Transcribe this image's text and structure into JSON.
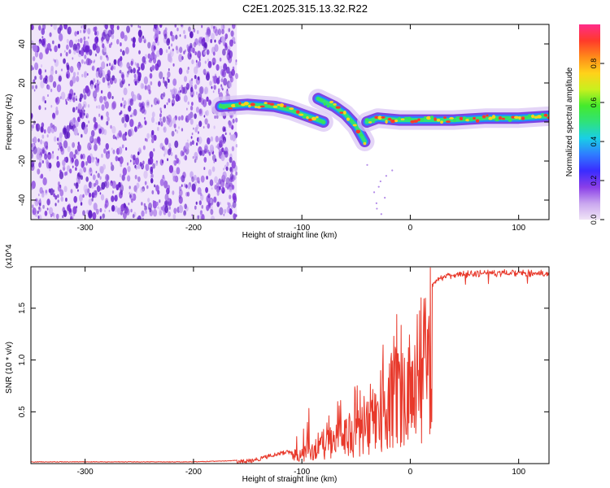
{
  "title": "C2E1.2025.315.13.32.R22",
  "colors": {
    "snr_line": "#e8392b",
    "speckle": "#7a2fd6",
    "colorbar_stops": [
      "#f0e4f6",
      "#c9a6ef",
      "#8a3ee8",
      "#3a2cff",
      "#2f7cff",
      "#19cfe6",
      "#2fe27a",
      "#45ea2c",
      "#c8f01e",
      "#ffd21a",
      "#ff8a1a",
      "#ff3a2a",
      "#ff2c8a"
    ]
  },
  "chart_data": [
    {
      "type": "heatmap",
      "title": "",
      "xlabel": "Height of straight line (km)",
      "ylabel": "Frequency (Hz)",
      "xlim": [
        -350,
        128
      ],
      "ylim": [
        -50,
        50
      ],
      "x_ticks": [
        -300,
        -200,
        -100,
        0,
        100
      ],
      "y_ticks": [
        -40,
        -20,
        0,
        20,
        40
      ],
      "colorbar": {
        "label": "Normalized spectral amplitude",
        "range": [
          0,
          1
        ],
        "ticks": [
          "0.0",
          "0.2",
          "0.4",
          "0.6",
          "0.8"
        ]
      },
      "noise_region_x": [
        -350,
        -160
      ],
      "ridges": [
        {
          "x": [
            -175,
            -150,
            -125,
            -110,
            -95,
            -80
          ],
          "y": [
            8,
            9,
            8,
            6,
            3,
            0
          ]
        },
        {
          "x": [
            -85,
            -70,
            -60,
            -50,
            -42
          ],
          "y": [
            12,
            8,
            4,
            -2,
            -10
          ]
        },
        {
          "x": [
            -40,
            -30,
            -10,
            10,
            40,
            70,
            100,
            128
          ],
          "y": [
            0,
            2,
            1,
            1,
            1,
            2,
            2,
            3
          ]
        }
      ]
    },
    {
      "type": "line",
      "title": "",
      "xlabel": "Height of straight line (km)",
      "ylabel": "SNR (10 * v/v)",
      "y_multiplier": "(x10^4)",
      "xlim": [
        -350,
        128
      ],
      "ylim": [
        0,
        1.9
      ],
      "x_ticks": [
        -300,
        -200,
        -100,
        0,
        100
      ],
      "y_ticks": [
        "0.5",
        "1.0",
        "1.5"
      ],
      "envelope": [
        {
          "x": -350,
          "y": 0.02
        },
        {
          "x": -200,
          "y": 0.02
        },
        {
          "x": -165,
          "y": 0.03
        },
        {
          "x": -145,
          "y": 0.05
        },
        {
          "x": -120,
          "y": 0.12
        },
        {
          "x": -100,
          "y": 0.15
        },
        {
          "x": -85,
          "y": 0.3
        },
        {
          "x": -70,
          "y": 0.4
        },
        {
          "x": -55,
          "y": 0.45
        },
        {
          "x": -40,
          "y": 0.6
        },
        {
          "x": -30,
          "y": 0.85
        },
        {
          "x": -20,
          "y": 1.05
        },
        {
          "x": -10,
          "y": 1.2
        },
        {
          "x": 0,
          "y": 1.3
        },
        {
          "x": 10,
          "y": 1.55
        },
        {
          "x": 20,
          "y": 1.75
        },
        {
          "x": 30,
          "y": 1.82
        },
        {
          "x": 50,
          "y": 1.85
        },
        {
          "x": 80,
          "y": 1.86
        },
        {
          "x": 110,
          "y": 1.86
        },
        {
          "x": 128,
          "y": 1.85
        }
      ]
    }
  ]
}
